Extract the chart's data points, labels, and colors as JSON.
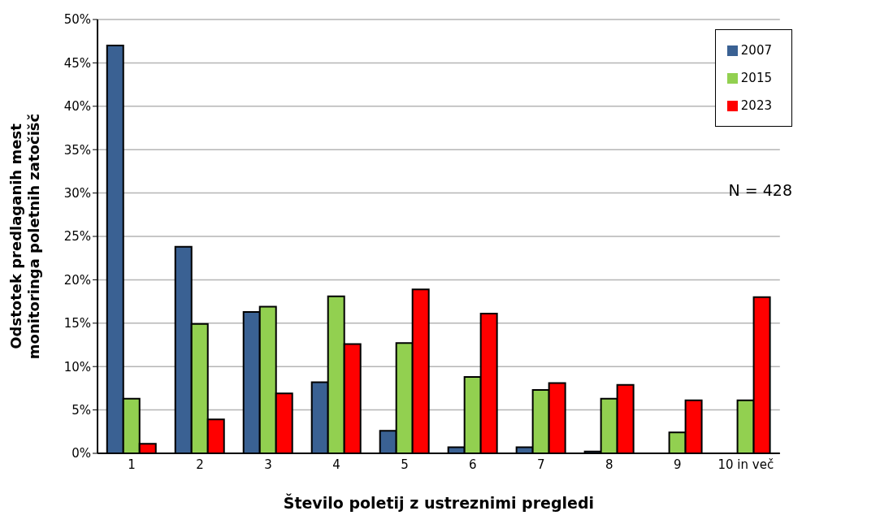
{
  "chart_data": {
    "type": "bar",
    "xlabel": "Število poletij z ustreznimi pregledi",
    "ylabel": "Odstotek predlaganih mest monitoringa poletnih zatočišč",
    "categories": [
      "1",
      "2",
      "3",
      "4",
      "5",
      "6",
      "7",
      "8",
      "9",
      "10 in več"
    ],
    "series": [
      {
        "name": "2007",
        "color": "#3a6193",
        "values": [
          47.0,
          23.8,
          16.3,
          8.2,
          2.6,
          0.7,
          0.7,
          0.2,
          0,
          0
        ]
      },
      {
        "name": "2015",
        "color": "#92d050",
        "values": [
          6.3,
          14.9,
          16.9,
          18.1,
          12.7,
          8.8,
          7.3,
          6.3,
          2.4,
          6.1
        ]
      },
      {
        "name": "2023",
        "color": "#ff0000",
        "values": [
          1.1,
          3.9,
          6.9,
          12.6,
          18.9,
          16.1,
          8.1,
          7.9,
          6.1,
          18.0
        ]
      }
    ],
    "ylim": [
      0,
      50
    ],
    "yticks": [
      {
        "value": 0,
        "label": "0%"
      },
      {
        "value": 5,
        "label": "5%"
      },
      {
        "value": 10,
        "label": "10%"
      },
      {
        "value": 15,
        "label": "15%"
      },
      {
        "value": 20,
        "label": "20%"
      },
      {
        "value": 25,
        "label": "25%"
      },
      {
        "value": 30,
        "label": "30%"
      },
      {
        "value": 35,
        "label": "35%"
      },
      {
        "value": 40,
        "label": "40%"
      },
      {
        "value": 45,
        "label": "45%"
      },
      {
        "value": 50,
        "label": "50%"
      }
    ],
    "grid": "y",
    "legend": "top right",
    "annotations": [
      "N = 428"
    ]
  }
}
